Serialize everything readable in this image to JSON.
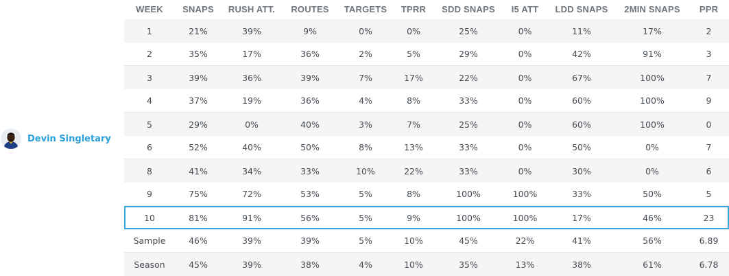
{
  "player": {
    "name": "Devin Singletary"
  },
  "table": {
    "headers": [
      "WEEK",
      "SNAPS",
      "RUSH ATT.",
      "ROUTES",
      "TARGETS",
      "TPRR",
      "SDD SNAPS",
      "I5 ATT",
      "LDD SNAPS",
      "2MIN SNAPS",
      "PPR"
    ],
    "rows": [
      [
        "1",
        "21%",
        "39%",
        "9%",
        "0%",
        "0%",
        "25%",
        "0%",
        "11%",
        "17%",
        "2"
      ],
      [
        "2",
        "35%",
        "17%",
        "36%",
        "2%",
        "5%",
        "29%",
        "0%",
        "42%",
        "91%",
        "3"
      ],
      [
        "3",
        "39%",
        "36%",
        "39%",
        "7%",
        "17%",
        "22%",
        "0%",
        "67%",
        "100%",
        "7"
      ],
      [
        "4",
        "37%",
        "19%",
        "36%",
        "4%",
        "8%",
        "33%",
        "0%",
        "60%",
        "100%",
        "9"
      ],
      [
        "5",
        "29%",
        "0%",
        "40%",
        "3%",
        "7%",
        "25%",
        "0%",
        "60%",
        "100%",
        "0"
      ],
      [
        "6",
        "52%",
        "40%",
        "50%",
        "8%",
        "13%",
        "33%",
        "0%",
        "50%",
        "0%",
        "7"
      ],
      [
        "8",
        "41%",
        "34%",
        "33%",
        "10%",
        "22%",
        "33%",
        "0%",
        "30%",
        "0%",
        "6"
      ],
      [
        "9",
        "75%",
        "72%",
        "53%",
        "5%",
        "8%",
        "100%",
        "100%",
        "33%",
        "50%",
        "5"
      ],
      [
        "10",
        "81%",
        "91%",
        "56%",
        "5%",
        "9%",
        "100%",
        "100%",
        "17%",
        "46%",
        "23"
      ]
    ],
    "summary_rows": [
      [
        "Sample",
        "46%",
        "39%",
        "39%",
        "5%",
        "10%",
        "45%",
        "22%",
        "41%",
        "56%",
        "6.89"
      ],
      [
        "Season",
        "45%",
        "39%",
        "38%",
        "4%",
        "10%",
        "35%",
        "13%",
        "38%",
        "61%",
        "6.78"
      ]
    ]
  },
  "colors": {
    "accent": "#2a9fd8",
    "highlight_border": "#3aa6e0",
    "shaded_row": "#f5f5f5",
    "header_text": "#6f767c",
    "body_text": "#444b52"
  }
}
